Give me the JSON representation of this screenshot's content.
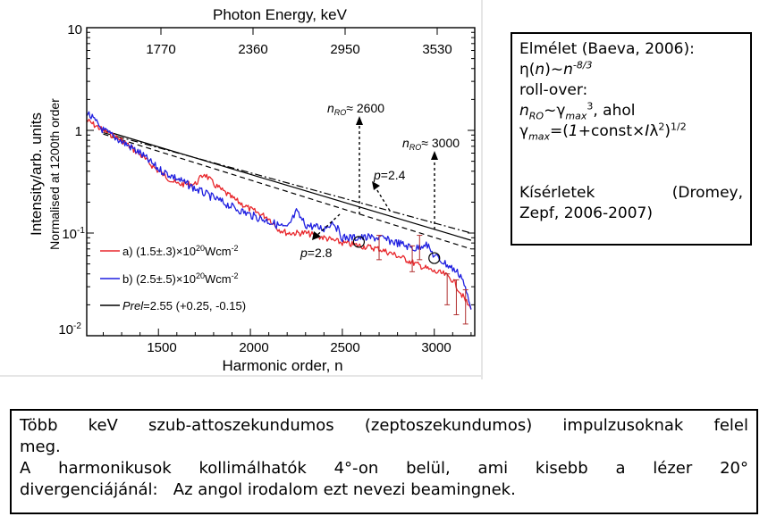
{
  "chart_data": {
    "type": "line",
    "top_axis_label": "Photon Energy, keV",
    "top_ticks": [
      "1770",
      "2360",
      "2950",
      "3530"
    ],
    "xlabel": "Harmonic order, n",
    "ylabel": "Intensity/arb. units",
    "ylabel2": "Normalised at 1200th order",
    "x_ticks": [
      "1500",
      "2000",
      "2500",
      "3000"
    ],
    "y_ticks": [
      {
        "base": "10",
        "exp": ""
      },
      {
        "base": "1",
        "exp": ""
      },
      {
        "base": "10",
        "exp": "-1"
      },
      {
        "base": "10",
        "exp": "-2"
      }
    ],
    "xlim": [
      1110,
      3220
    ],
    "ylim": [
      0.01,
      10
    ],
    "y_scale": "log",
    "legend": [
      {
        "prefix": "a) (1.5±.3)×10",
        "sup": "20",
        "suffix": "Wcm",
        "sup2": "-2"
      },
      {
        "prefix": "b) (2.5±.5)×10",
        "sup": "20",
        "suffix": "Wcm",
        "sup2": "-2"
      },
      {
        "prefix": "",
        "italic": "Prel",
        "suffix": "=2.55 (+0.25, -0.15)"
      }
    ],
    "annotations": {
      "n_ro_2600": {
        "sub": "RO",
        "text": "≈ 2600"
      },
      "n_ro_3000": {
        "sub": "RO",
        "text": "≈ 3000"
      },
      "p_24": "=2.4",
      "p_28": "=2.8",
      "n_symbol": "n",
      "p_symbol": "p"
    },
    "series": [
      {
        "name": "a) (1.5±.3)×10^20 Wcm^-2",
        "color": "#e8262b",
        "x": [
          1110,
          1200,
          1300,
          1400,
          1500,
          1600,
          1700,
          1750,
          1800,
          1900,
          2000,
          2100,
          2150,
          2200,
          2300,
          2400,
          2500,
          2600,
          2700,
          2800,
          2900,
          3000,
          3050,
          3100,
          3150,
          3200
        ],
        "y": [
          1.25,
          1.0,
          0.8,
          0.58,
          0.4,
          0.3,
          0.3,
          0.38,
          0.3,
          0.22,
          0.17,
          0.14,
          0.11,
          0.1,
          0.1,
          0.09,
          0.08,
          0.075,
          0.07,
          0.06,
          0.05,
          0.042,
          0.04,
          0.035,
          0.025,
          0.018
        ]
      },
      {
        "name": "b) (2.5±.5)×10^20 Wcm^-2",
        "color": "#1f1fe0",
        "x": [
          1110,
          1200,
          1300,
          1400,
          1500,
          1600,
          1700,
          1800,
          1900,
          2000,
          2100,
          2200,
          2250,
          2300,
          2400,
          2450,
          2500,
          2600,
          2700,
          2800,
          2900,
          2950,
          3000,
          3100,
          3150,
          3200
        ],
        "y": [
          1.5,
          1.0,
          0.78,
          0.6,
          0.42,
          0.34,
          0.27,
          0.22,
          0.18,
          0.15,
          0.13,
          0.11,
          0.16,
          0.12,
          0.11,
          0.13,
          0.09,
          0.09,
          0.09,
          0.08,
          0.07,
          0.08,
          0.06,
          0.045,
          0.038,
          0.018
        ]
      }
    ],
    "fit_lines": [
      {
        "style": "solid",
        "color": "#000000",
        "x": [
          1200,
          3200
        ],
        "y": [
          1.0,
          0.085
        ]
      },
      {
        "style": "dashdot",
        "color": "#000000",
        "x": [
          1200,
          3200
        ],
        "y": [
          0.95,
          0.1
        ]
      },
      {
        "style": "dashed",
        "color": "#000000",
        "x": [
          1200,
          3200
        ],
        "y": [
          0.92,
          0.07
        ]
      }
    ],
    "circles": [
      {
        "x": 2590,
        "y": 0.082
      },
      {
        "x": 3000,
        "y": 0.057
      }
    ],
    "error_bars": [
      {
        "x": 2700,
        "y": 0.075,
        "low": 0.055,
        "high": 0.095
      },
      {
        "x": 2880,
        "y": 0.06,
        "low": 0.042,
        "high": 0.075
      },
      {
        "x": 2920,
        "y": 0.075,
        "low": 0.055,
        "high": 0.095
      },
      {
        "x": 3070,
        "y": 0.03,
        "low": 0.02,
        "high": 0.04
      },
      {
        "x": 3120,
        "y": 0.025,
        "low": 0.016,
        "high": 0.035
      },
      {
        "x": 3170,
        "y": 0.02,
        "low": 0.013,
        "high": 0.028
      }
    ]
  },
  "theory_box": {
    "l1": "Elmélet (Baeva, 2006):",
    "eta": "η",
    "n_open": "(",
    "n": "n",
    "n_close": ")~",
    "n2": "n",
    "exp1": "-8/3",
    "roll": "roll-over:",
    "nro_n": "n",
    "nro_sub": "RO",
    "nro_tilde": "~",
    "gamma": "γ",
    "gmax_sub": "max",
    "gmax_sup": "3",
    "ahol": ", ahol",
    "g2": "γ",
    "g2_sub": "max",
    "formula_a": "=(",
    "one": "1",
    "formula_b": "+const",
    "times": "×",
    "I": "I",
    "lambda": "λ",
    "lam_sup": "2",
    "formula_c": ")",
    "half": "1/2",
    "exp_w1": "Kísérletek",
    "exp_w2": "(Dromey,",
    "exp_l2": "Zepf, 2006-2007)"
  },
  "bottom_box": {
    "l1": "Több keV szub-attoszekundumos (zeptoszekundumos) impulzusoknak felel",
    "l2": "meg.",
    "l3": "A harmonikusok kollimálhatók 4°-on belül, ami kisebb a lézer 20°",
    "l4": "divergenciájánál:   Az angol irodalom ezt nevezi beamingnek."
  }
}
